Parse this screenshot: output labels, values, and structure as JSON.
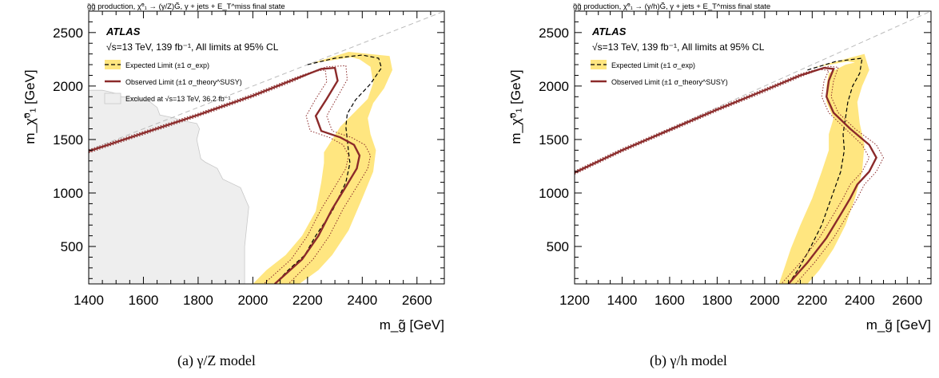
{
  "chart_data": [
    {
      "type": "contour",
      "panel": "(a)",
      "header": "g̃g̃ production, χ̃⁰₁ → (γ/Z)G̃, γ + jets + E_T^miss final state",
      "atlas_label": "ATLAS",
      "energy_text": "√s=13 TeV, 139 fb⁻¹, All limits at 95% CL",
      "xlabel": "m_g̃ [GeV]",
      "ylabel": "m_χ̃⁰₁ [GeV]",
      "xlim": [
        1400,
        2700
      ],
      "ylim": [
        150,
        2700
      ],
      "xticks": [
        1400,
        1600,
        1800,
        2000,
        2200,
        2400,
        2600
      ],
      "yticks": [
        500,
        1000,
        1500,
        2000,
        2500
      ],
      "legend": [
        {
          "kind": "expected",
          "label": "Expected Limit (±1 σ_exp)"
        },
        {
          "kind": "observed",
          "label": "Observed Limit (±1 σ_theory^SUSY)"
        },
        {
          "kind": "excluded",
          "label": "Excluded at √s=13 TeV, 36.2 fb⁻¹"
        }
      ],
      "caption": "(a) γ/Z model",
      "observed": {
        "x": [
          1400,
          1600,
          1800,
          2000,
          2150,
          2250,
          2300,
          2310,
          2270,
          2230,
          2250,
          2320,
          2370,
          2390,
          2380,
          2340,
          2290,
          2240,
          2180,
          2080
        ],
        "y": [
          1390,
          1560,
          1730,
          1910,
          2060,
          2160,
          2170,
          2050,
          1880,
          1720,
          1580,
          1520,
          1450,
          1350,
          1230,
          1060,
          850,
          600,
          380,
          150
        ]
      },
      "observed_up": {
        "x": [
          1400,
          1600,
          1800,
          2000,
          2150,
          2270,
          2340,
          2345,
          2305,
          2270,
          2290,
          2360,
          2410,
          2430,
          2420,
          2380,
          2330,
          2280,
          2220,
          2130
        ],
        "y": [
          1405,
          1575,
          1745,
          1925,
          2075,
          2180,
          2190,
          2060,
          1880,
          1720,
          1580,
          1520,
          1450,
          1350,
          1230,
          1060,
          850,
          600,
          380,
          150
        ]
      },
      "observed_down": {
        "x": [
          1400,
          1600,
          1800,
          2000,
          2150,
          2230,
          2265,
          2270,
          2230,
          2195,
          2210,
          2280,
          2330,
          2350,
          2340,
          2300,
          2250,
          2200,
          2140,
          2040
        ],
        "y": [
          1375,
          1545,
          1715,
          1895,
          2045,
          2140,
          2150,
          2040,
          1880,
          1720,
          1580,
          1520,
          1450,
          1350,
          1230,
          1060,
          850,
          600,
          380,
          150
        ]
      },
      "expected": {
        "x": [
          2200,
          2300,
          2400,
          2460,
          2470,
          2430,
          2375,
          2345,
          2340,
          2345,
          2350,
          2355,
          2340,
          2290,
          2230,
          2190,
          2130,
          2080
        ],
        "y": [
          2200,
          2260,
          2290,
          2260,
          2170,
          2020,
          1870,
          1740,
          1620,
          1500,
          1380,
          1280,
          1100,
          830,
          600,
          420,
          280,
          150
        ]
      },
      "expected_band_outer": {
        "x": [
          2210,
          2350,
          2500,
          2510,
          2480,
          2440,
          2420,
          2430,
          2450,
          2440,
          2400,
          2350,
          2290,
          2240,
          2170
        ],
        "y": [
          2210,
          2320,
          2280,
          2150,
          1980,
          1840,
          1700,
          1550,
          1400,
          1200,
          950,
          650,
          420,
          280,
          150
        ]
      },
      "expected_band_inner": {
        "x": [
          2000,
          2050,
          2120,
          2180,
          2230,
          2250,
          2260,
          2260,
          2290,
          2320,
          2370,
          2420,
          2440,
          2430,
          2390,
          2360
        ],
        "y": [
          150,
          280,
          420,
          600,
          830,
          1100,
          1280,
          1380,
          1500,
          1620,
          1750,
          1880,
          2030,
          2180,
          2250,
          2270
        ]
      },
      "excluded_2015": {
        "x": [
          1400,
          1400,
          1970,
          1970,
          1985,
          1955,
          1890,
          1870,
          1825,
          1810,
          1795,
          1805,
          1795,
          1735,
          1715,
          1660,
          1650,
          1620,
          1600,
          1580,
          1570,
          1520,
          1510,
          1500,
          1470,
          1450,
          1400
        ],
        "y": [
          1370,
          150,
          150,
          500,
          870,
          1050,
          1130,
          1230,
          1290,
          1320,
          1500,
          1600,
          1650,
          1680,
          1700,
          1730,
          1800,
          1860,
          1870,
          1880,
          1890,
          1900,
          1920,
          1930,
          1950,
          1960,
          1960
        ]
      }
    },
    {
      "type": "contour",
      "panel": "(b)",
      "header": "g̃g̃ production, χ̃⁰₁ → (γ/h)G̃, γ + jets + E_T^miss final state",
      "atlas_label": "ATLAS",
      "energy_text": "√s=13 TeV, 139 fb⁻¹, All limits at 95% CL",
      "xlabel": "m_g̃ [GeV]",
      "ylabel": "m_χ̃⁰₁ [GeV]",
      "xlim": [
        1200,
        2700
      ],
      "ylim": [
        150,
        2700
      ],
      "xticks": [
        1200,
        1400,
        1600,
        1800,
        2000,
        2200,
        2400,
        2600
      ],
      "yticks": [
        500,
        1000,
        1500,
        2000,
        2500
      ],
      "legend": [
        {
          "kind": "expected",
          "label": "Expected Limit (±1 σ_exp)"
        },
        {
          "kind": "observed",
          "label": "Observed Limit (±1 σ_theory^SUSY)"
        }
      ],
      "caption": "(b) γ/h model",
      "observed": {
        "x": [
          1200,
          1400,
          1600,
          1800,
          2000,
          2150,
          2250,
          2290,
          2270,
          2260,
          2290,
          2360,
          2440,
          2470,
          2440,
          2390,
          2360,
          2320,
          2260,
          2180,
          2100
        ],
        "y": [
          1190,
          1400,
          1590,
          1780,
          1960,
          2100,
          2170,
          2160,
          2050,
          1900,
          1750,
          1600,
          1450,
          1330,
          1200,
          1080,
          950,
          800,
          580,
          350,
          150
        ]
      },
      "observed_up": {
        "x": [
          1200,
          1400,
          1600,
          1800,
          2000,
          2150,
          2270,
          2310,
          2290,
          2280,
          2310,
          2380,
          2470,
          2500,
          2470,
          2420,
          2390,
          2350,
          2290,
          2210,
          2130
        ],
        "y": [
          1205,
          1415,
          1605,
          1795,
          1975,
          2115,
          2185,
          2175,
          2050,
          1900,
          1750,
          1600,
          1450,
          1330,
          1200,
          1080,
          950,
          800,
          580,
          350,
          150
        ]
      },
      "observed_down": {
        "x": [
          1200,
          1400,
          1600,
          1800,
          2000,
          2150,
          2230,
          2270,
          2250,
          2240,
          2270,
          2340,
          2410,
          2440,
          2410,
          2360,
          2330,
          2290,
          2230,
          2150,
          2070
        ],
        "y": [
          1175,
          1385,
          1575,
          1765,
          1945,
          2085,
          2155,
          2145,
          2050,
          1900,
          1750,
          1600,
          1450,
          1330,
          1200,
          1080,
          950,
          800,
          580,
          350,
          150
        ]
      },
      "expected": {
        "x": [
          2180,
          2300,
          2410,
          2400,
          2370,
          2350,
          2340,
          2330,
          2335,
          2320,
          2280,
          2240,
          2190,
          2140,
          2100
        ],
        "y": [
          2150,
          2230,
          2260,
          2120,
          2000,
          1850,
          1700,
          1550,
          1400,
          1200,
          950,
          700,
          480,
          280,
          150
        ]
      },
      "expected_band_outer": {
        "x": [
          2200,
          2420,
          2440,
          2410,
          2390,
          2400,
          2420,
          2410,
          2380,
          2340,
          2290,
          2230,
          2180
        ],
        "y": [
          2170,
          2300,
          2150,
          2000,
          1850,
          1650,
          1450,
          1200,
          950,
          700,
          480,
          280,
          150
        ]
      },
      "expected_band_inner": {
        "x": [
          2060,
          2080,
          2110,
          2150,
          2200,
          2240,
          2270,
          2270,
          2290,
          2260,
          2260,
          2270,
          2340,
          2380,
          2350
        ],
        "y": [
          150,
          280,
          480,
          700,
          950,
          1200,
          1400,
          1550,
          1700,
          1850,
          2000,
          2120,
          2200,
          2220,
          2230
        ]
      }
    }
  ]
}
